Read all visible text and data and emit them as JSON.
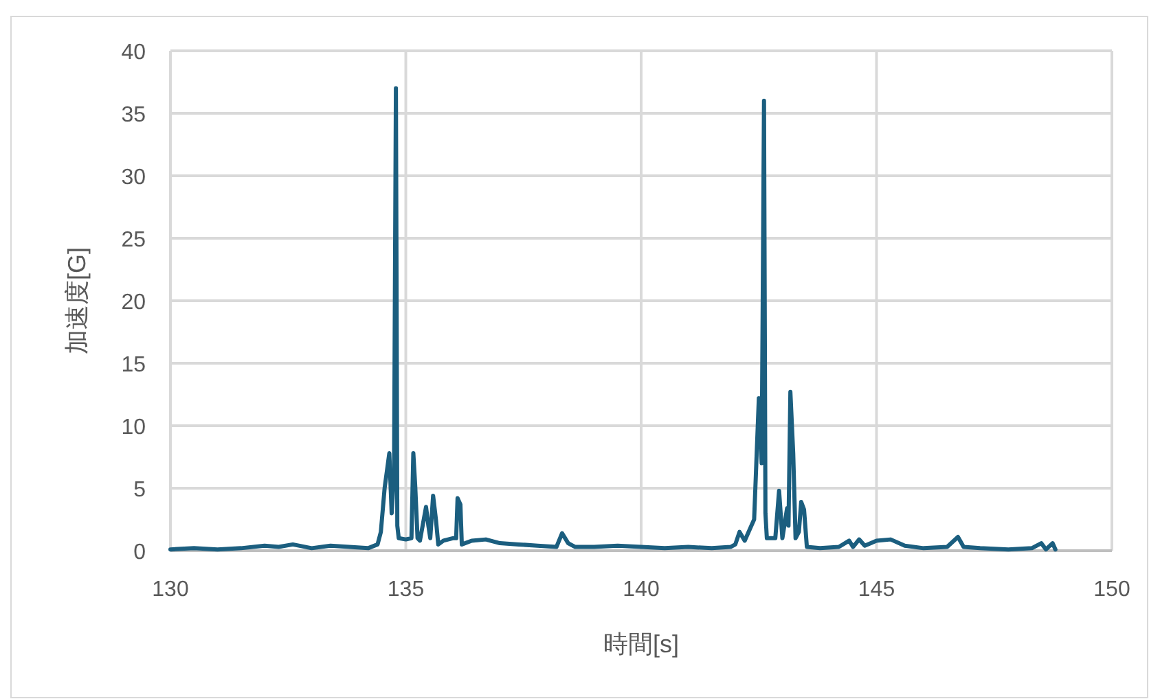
{
  "chart_data": {
    "type": "line",
    "xlabel": "時間[s]",
    "ylabel": "加速度[G]",
    "xlim": [
      130,
      150
    ],
    "xticks": [
      130,
      135,
      140,
      145,
      150
    ],
    "ylim": [
      0,
      40
    ],
    "yticks": [
      0,
      5,
      10,
      15,
      20,
      25,
      30,
      35,
      40
    ],
    "grid": true,
    "marker": "none",
    "line_style": "solid",
    "series": [
      {
        "color": "#1b5e7f",
        "x": [
          130,
          130.5,
          131,
          131.5,
          132,
          132.3,
          132.6,
          133,
          133.4,
          133.8,
          134.2,
          134.4,
          134.47,
          134.55,
          134.65,
          134.7,
          134.75,
          134.79,
          134.82,
          134.85,
          135.0,
          135.12,
          135.16,
          135.2,
          135.25,
          135.3,
          135.43,
          135.48,
          135.52,
          135.58,
          135.64,
          135.69,
          135.8,
          136.0,
          136.07,
          136.1,
          136.16,
          136.19,
          136.4,
          136.7,
          137.0,
          137.4,
          137.8,
          138.2,
          138.32,
          138.45,
          138.6,
          139.0,
          139.5,
          140.0,
          140.5,
          141.0,
          141.5,
          141.9,
          142.0,
          142.09,
          142.2,
          142.4,
          142.5,
          142.56,
          142.61,
          142.64,
          142.67,
          142.85,
          142.93,
          143.0,
          143.1,
          143.13,
          143.17,
          143.23,
          143.28,
          143.35,
          143.4,
          143.46,
          143.52,
          143.8,
          144.2,
          144.42,
          144.5,
          144.63,
          144.75,
          145.0,
          145.3,
          145.6,
          146.0,
          146.5,
          146.73,
          146.85,
          147.2,
          147.8,
          148.3,
          148.5,
          148.6,
          148.74,
          148.8
        ],
        "values": [
          0.1,
          0.2,
          0.1,
          0.2,
          0.4,
          0.3,
          0.5,
          0.2,
          0.4,
          0.3,
          0.2,
          0.5,
          1.5,
          5.0,
          7.8,
          3.0,
          6.0,
          37,
          2.0,
          1.0,
          0.9,
          1.0,
          7.8,
          5.2,
          1.0,
          0.8,
          3.5,
          2.0,
          1.0,
          4.4,
          2.5,
          0.5,
          0.8,
          1.0,
          1.0,
          4.2,
          3.7,
          0.5,
          0.8,
          0.9,
          0.6,
          0.5,
          0.4,
          0.3,
          1.4,
          0.6,
          0.3,
          0.3,
          0.4,
          0.3,
          0.2,
          0.3,
          0.2,
          0.3,
          0.5,
          1.5,
          0.8,
          2.5,
          12.2,
          7.0,
          36,
          3.0,
          1.0,
          1.0,
          4.8,
          1.0,
          3.4,
          2.0,
          12.7,
          7.8,
          1.0,
          1.5,
          3.9,
          3.3,
          0.3,
          0.2,
          0.3,
          0.8,
          0.3,
          0.9,
          0.4,
          0.8,
          0.9,
          0.4,
          0.2,
          0.3,
          1.1,
          0.3,
          0.2,
          0.1,
          0.2,
          0.6,
          0.1,
          0.6,
          0.1
        ]
      }
    ]
  }
}
